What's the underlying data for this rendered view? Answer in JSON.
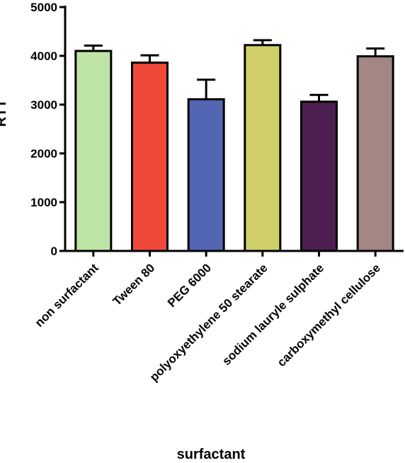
{
  "chart_data": {
    "type": "bar",
    "title": "",
    "xlabel": "surfactant",
    "ylabel": "RTT",
    "ylim": [
      0,
      5000
    ],
    "yticks": [
      0,
      1000,
      2000,
      3000,
      4000,
      5000
    ],
    "categories": [
      "non surfactant",
      "Tween 80",
      "PEG 6000",
      "polyoxyethylene 50 stearate",
      "sodium lauryle sulphate",
      "carboxymethyl cellulose"
    ],
    "values": [
      4100,
      3860,
      3110,
      4220,
      3060,
      3990
    ],
    "errors": [
      110,
      150,
      400,
      100,
      140,
      160
    ],
    "colors": [
      "#bfe5a6",
      "#f0493a",
      "#5366b3",
      "#cfd068",
      "#4c1f50",
      "#a38785"
    ],
    "grid": false,
    "legend": "none"
  }
}
